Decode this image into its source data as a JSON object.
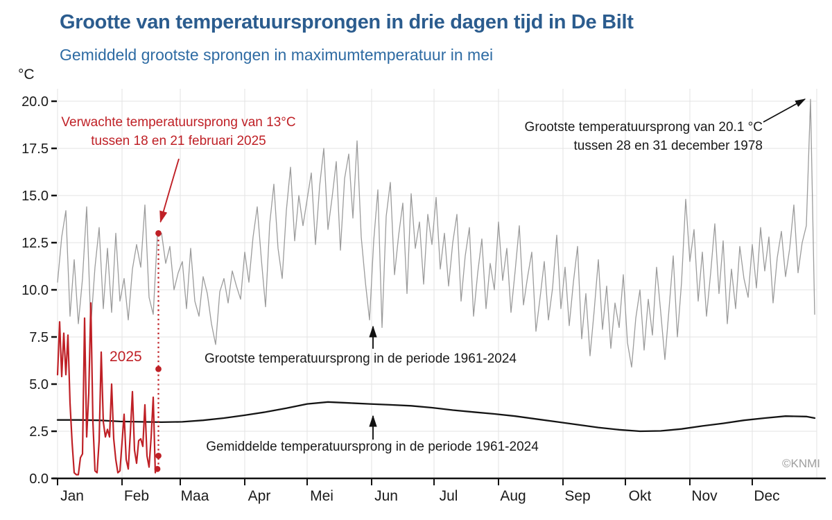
{
  "title": "Grootte van temperatuursprongen in drie dagen tijd in De Bilt",
  "subtitle": "Gemiddeld grootste sprongen in maximumtemperatuur in mei",
  "credit": "©KNMI",
  "colors": {
    "title_blue": "#2b5c8e",
    "subtitle_blue": "#2e6ba3",
    "red": "#bf2026",
    "gray_series": "#9b9b9b",
    "black_series": "#141414",
    "grid": "#e3e3e3",
    "axis": "#111111"
  },
  "chart_data": {
    "type": "line",
    "title": "Grootte van temperatuursprongen in drie dagen tijd in De Bilt",
    "subtitle": "Gemiddeld grootste sprongen in maximumtemperatuur in mei",
    "unit": "°C",
    "grid": true,
    "x_axis": {
      "months": [
        "Jan",
        "Feb",
        "Maa",
        "Apr",
        "Mei",
        "Jun",
        "Jul",
        "Aug",
        "Sep",
        "Okt",
        "Nov",
        "Dec"
      ],
      "month_start_days": [
        1,
        32,
        60,
        91,
        121,
        152,
        182,
        213,
        244,
        274,
        305,
        335
      ],
      "days_in_year": 365
    },
    "y_axis": {
      "min": 0,
      "max": 20,
      "ticks": [
        0,
        2.5,
        5,
        7.5,
        10,
        12.5,
        15,
        17.5,
        20
      ],
      "tick_labels": [
        "0.0",
        "2.5",
        "5.0",
        "7.5",
        "10.0",
        "12.5",
        "15.0",
        "17.5",
        "20.0"
      ]
    },
    "series": [
      {
        "name": "Grootste temperatuursprong in de periode 1961-2024",
        "color": "#9b9b9b",
        "width": 1.3,
        "start_day": 1,
        "day_step": 2,
        "values": [
          10.4,
          12.8,
          14.2,
          8.6,
          11.6,
          8.2,
          10.6,
          14.4,
          8.1,
          11.2,
          13.3,
          9.0,
          12.2,
          8.8,
          13.0,
          9.4,
          10.6,
          8.4,
          11.1,
          12.4,
          11.2,
          14.5,
          9.6,
          8.7,
          12.9,
          13.0,
          11.4,
          12.3,
          10.0,
          10.9,
          11.5,
          9.0,
          12.2,
          9.4,
          8.6,
          10.7,
          9.8,
          8.2,
          7.1,
          9.9,
          10.6,
          9.3,
          11.0,
          10.2,
          9.5,
          12.0,
          10.4,
          12.8,
          14.4,
          11.6,
          9.1,
          13.5,
          15.6,
          12.2,
          10.6,
          14.2,
          16.5,
          12.6,
          15.0,
          13.4,
          14.8,
          16.2,
          12.4,
          15.5,
          17.5,
          13.2,
          14.9,
          16.8,
          12.1,
          15.9,
          17.2,
          13.8,
          17.9,
          12.8,
          10.4,
          8.4,
          12.6,
          15.3,
          8.0,
          13.9,
          15.7,
          10.8,
          12.9,
          14.6,
          9.8,
          15.1,
          12.2,
          13.6,
          10.3,
          14.0,
          12.4,
          14.9,
          11.1,
          13.0,
          10.2,
          12.5,
          14.0,
          9.4,
          11.8,
          13.3,
          8.6,
          10.9,
          12.7,
          9.0,
          11.4,
          10.0,
          13.6,
          10.5,
          12.2,
          8.8,
          11.0,
          13.4,
          9.2,
          10.7,
          12.0,
          7.8,
          9.6,
          11.5,
          8.4,
          10.1,
          12.9,
          9.0,
          11.2,
          8.1,
          10.4,
          12.3,
          7.4,
          9.8,
          6.5,
          8.9,
          11.6,
          7.9,
          10.2,
          6.9,
          9.3,
          8.0,
          10.8,
          7.2,
          5.9,
          8.5,
          10.0,
          6.8,
          9.5,
          7.6,
          11.2,
          8.8,
          6.3,
          9.0,
          11.8,
          7.5,
          10.4,
          14.8,
          11.5,
          13.2,
          9.4,
          12.0,
          8.6,
          10.9,
          13.5,
          9.8,
          12.6,
          8.2,
          11.1,
          9.0,
          12.3,
          10.6,
          9.6,
          12.4,
          10.1,
          13.3,
          11.0,
          12.8,
          9.3,
          11.7,
          13.1,
          10.7,
          12.2,
          14.5,
          10.9,
          12.5,
          13.4,
          20.1,
          8.7
        ]
      },
      {
        "name": "Gemiddelde temperatuursprong in de periode 1961-2024",
        "color": "#141414",
        "width": 2.3,
        "start_day": 1,
        "day_step": 10,
        "values": [
          3.1,
          3.1,
          3.08,
          3.02,
          3.0,
          2.98,
          3.0,
          3.08,
          3.2,
          3.35,
          3.52,
          3.72,
          3.95,
          4.05,
          4.0,
          3.95,
          3.9,
          3.85,
          3.75,
          3.62,
          3.52,
          3.42,
          3.3,
          3.15,
          3.0,
          2.85,
          2.7,
          2.58,
          2.5,
          2.52,
          2.62,
          2.78,
          2.92,
          3.08,
          3.2,
          3.3,
          3.28,
          3.2
        ]
      },
      {
        "name": "2025",
        "color": "#bf2026",
        "width": 2.2,
        "start_day": 1,
        "day_step": 1,
        "values": [
          5.5,
          8.3,
          5.4,
          7.7,
          5.5,
          7.6,
          4.0,
          1.9,
          0.3,
          0.2,
          0.2,
          1.1,
          1.3,
          8.5,
          2.2,
          4.5,
          9.3,
          3.0,
          0.4,
          0.3,
          2.0,
          6.7,
          3.0,
          2.2,
          2.6,
          2.2,
          5.0,
          2.1,
          1.0,
          0.3,
          0.4,
          1.9,
          3.4,
          1.0,
          0.5,
          2.4,
          4.6,
          1.5,
          0.8,
          2.0,
          2.1,
          1.7,
          3.9,
          1.2,
          0.6,
          2.2,
          4.3,
          0.3
        ]
      }
    ],
    "forecast": {
      "description": "Verwachte temperatuursprong van 13°C tussen 18 en 21 februari 2025",
      "color": "#bf2026",
      "dotted_line": {
        "day": 49.5,
        "from_value": 0.5,
        "to_value": 13.0
      },
      "dots": [
        {
          "day": 49.5,
          "value": 13.0
        },
        {
          "day": 49.5,
          "value": 5.8
        },
        {
          "day": 49.5,
          "value": 1.2
        },
        {
          "day": 49.0,
          "value": 0.5
        }
      ]
    },
    "annotations": {
      "expected": {
        "line1": "Verwachte temperatuursprong van 13°C",
        "line2": "tussen 18 en 21 februari 2025"
      },
      "record": {
        "line1": "Grootste temperatuursprong van 20.1 °C",
        "line2": "tussen 28 en 31 december 1978"
      },
      "year_label": "2025",
      "max_series_label": "Grootste temperatuursprong in de periode 1961-2024",
      "avg_series_label": "Gemiddelde temperatuursprong in de periode 1961-2024"
    }
  }
}
